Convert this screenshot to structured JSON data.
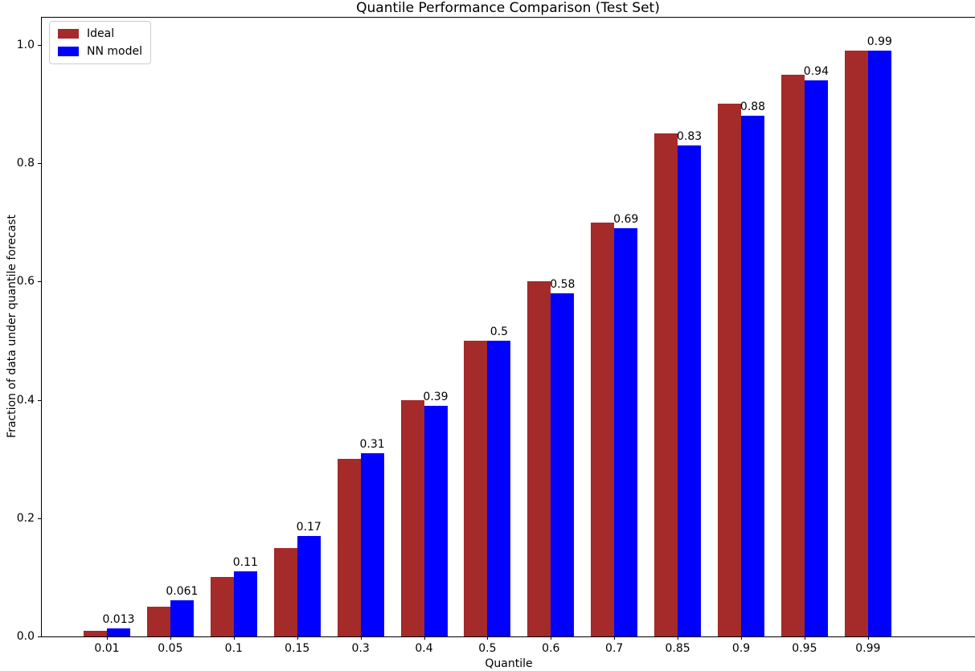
{
  "chart_data": {
    "type": "bar",
    "title": "Quantile Performance Comparison (Test Set)",
    "xlabel": "Quantile",
    "ylabel": "Fraction of data under quantile forecast",
    "categories": [
      "0.01",
      "0.05",
      "0.1",
      "0.15",
      "0.3",
      "0.4",
      "0.5",
      "0.6",
      "0.7",
      "0.85",
      "0.9",
      "0.95",
      "0.99"
    ],
    "series": [
      {
        "name": "Ideal",
        "color": "#a52a2a",
        "values": [
          0.01,
          0.05,
          0.1,
          0.15,
          0.3,
          0.4,
          0.5,
          0.6,
          0.7,
          0.85,
          0.9,
          0.95,
          0.99
        ]
      },
      {
        "name": "NN model",
        "color": "#0000ff",
        "values": [
          0.013,
          0.061,
          0.11,
          0.17,
          0.31,
          0.39,
          0.5,
          0.58,
          0.69,
          0.83,
          0.88,
          0.94,
          0.99
        ],
        "bar_labels": [
          "0.013",
          "0.061",
          "0.11",
          "0.17",
          "0.31",
          "0.39",
          "0.5",
          "0.58",
          "0.69",
          "0.83",
          "0.88",
          "0.94",
          "0.99"
        ]
      }
    ],
    "yticks": [
      "0.0",
      "0.2",
      "0.4",
      "0.6",
      "0.8",
      "1.0"
    ],
    "ylim": [
      0,
      1.046
    ],
    "grid": false,
    "legend_position": "upper left",
    "background_color": "#ffffff",
    "text_color": "#000000"
  }
}
